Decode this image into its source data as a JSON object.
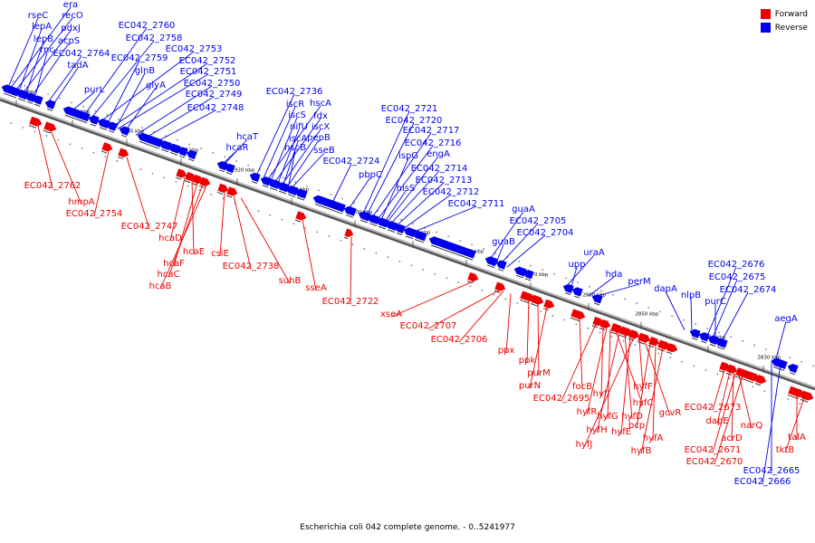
{
  "caption": "Escherichia coli 042 complete genome. - 0..5241977",
  "legend": [
    {
      "label": "Forward",
      "color": "#ee0000"
    },
    {
      "label": "Reverse",
      "color": "#0000ee"
    }
  ],
  "colors": {
    "forward": "#ee0000",
    "reverse": "#0000ee",
    "axis": "#888888"
  },
  "ticks": [
    "2960 kbp",
    "2950 kbp",
    "2940 kbp",
    "2930 kbp",
    "2920 kbp",
    "2910 kbp",
    "2900 kbp",
    "2890 kbp",
    "2880 kbp",
    "2870 kbp",
    "2860 kbp",
    "2850 kbp",
    "2840 kbp",
    "2830 kbp"
  ],
  "reverse_labels": [
    "era",
    "rseC",
    "recO",
    "lepA",
    "pdxJ",
    "lepB",
    "acpS",
    "rnc",
    "EC042_2764",
    "tadA",
    "EC042_2760",
    "EC042_2758",
    "EC042_2753",
    "EC042_2759",
    "EC042_2752",
    "glnB",
    "EC042_2751",
    "glyA",
    "EC042_2750",
    "purL",
    "EC042_2749",
    "EC042_2748",
    "EC042_2736",
    "iscR",
    "hscA",
    "iscS",
    "fdx",
    "nifU",
    "iscX",
    "iscA",
    "pepB",
    "hscB",
    "sseB",
    "hcaT",
    "hcaR",
    "EC042_2724",
    "pbpC",
    "EC042_2721",
    "EC042_2720",
    "EC042_2717",
    "EC042_2716",
    "ispG",
    "engA",
    "EC042_2714",
    "hisS",
    "EC042_2713",
    "EC042_2712",
    "EC042_2711",
    "guaA",
    "EC042_2705",
    "guaB",
    "EC042_2704",
    "uraA",
    "upp",
    "hda",
    "perM",
    "dapA",
    "nlpB",
    "EC042_2676",
    "EC042_2675",
    "purC",
    "EC042_2674",
    "aegA",
    "EC042_2665",
    "EC042_2666"
  ],
  "forward_labels": [
    "EC042_2762",
    "hmpA",
    "EC042_2754",
    "EC042_2747",
    "hcaD",
    "hcaE",
    "hcaF",
    "hcaC",
    "hcaB",
    "csiE",
    "EC042_2738",
    "suhB",
    "sseA",
    "EC042_2722",
    "xseA",
    "EC042_2707",
    "EC042_2706",
    "ppx",
    "ppk",
    "purM",
    "purN",
    "focB",
    "EC042_2695",
    "hyfI",
    "hyfR",
    "hyfG",
    "hyfC",
    "hyfH",
    "hyfD",
    "hyfE",
    "hyfJ",
    "hyfF",
    "gcvR",
    "bcp",
    "hyfA",
    "hyfB",
    "EC042_2673",
    "dapE",
    "narQ",
    "acrD",
    "EC042_2671",
    "EC042_2670",
    "talA",
    "tktB"
  ]
}
